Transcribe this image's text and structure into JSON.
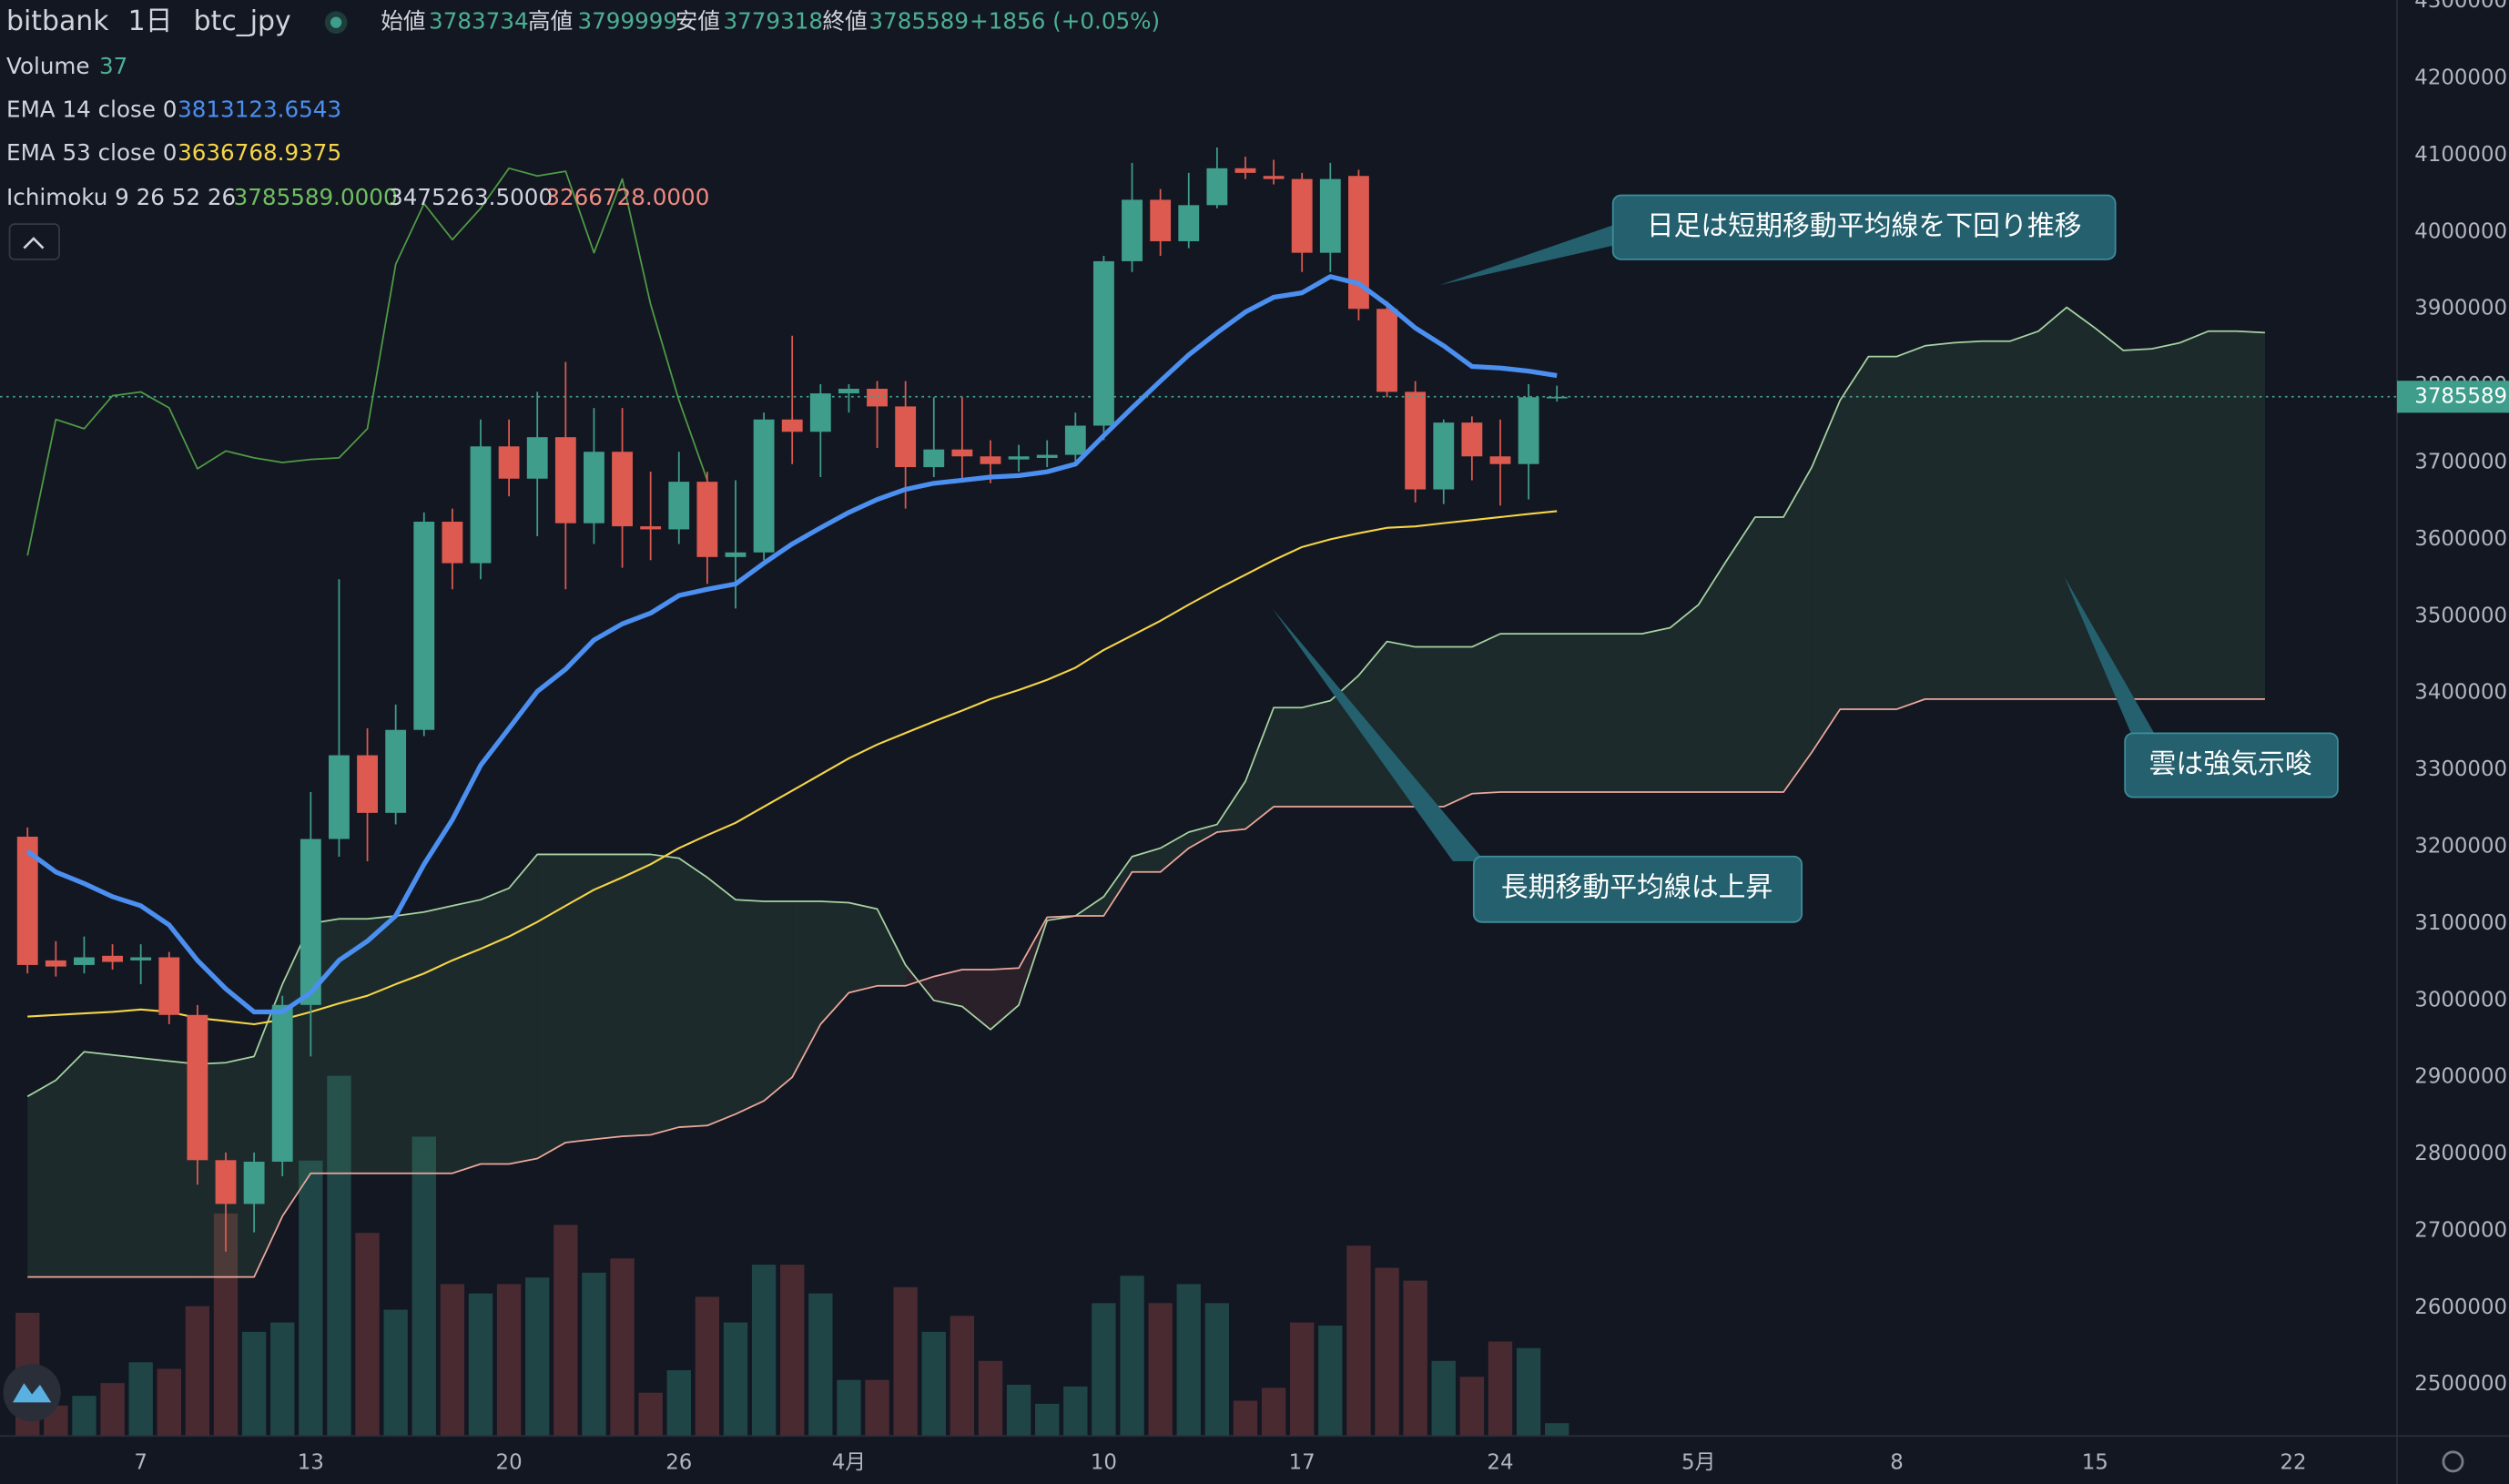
{
  "chart_data": {
    "type": "candlestick",
    "header": {
      "exchange": "bitbank",
      "interval": "1日",
      "symbol": "btc_jpy",
      "open_label": "始値",
      "high_label": "高値",
      "low_label": "安値",
      "close_label": "終値",
      "change": "+1856 (+0.05%)"
    },
    "categories": [
      null,
      null,
      null,
      null,
      "7",
      null,
      null,
      null,
      null,
      null,
      "13",
      null,
      null,
      null,
      null,
      null,
      null,
      "20",
      null,
      null,
      null,
      null,
      null,
      "26",
      null,
      null,
      null,
      null,
      null,
      "4月",
      null,
      null,
      null,
      null,
      null,
      null,
      null,
      null,
      "10",
      null,
      null,
      null,
      null,
      null,
      null,
      "17",
      null,
      null,
      null,
      null,
      null,
      null,
      "24",
      null,
      null,
      null,
      null,
      null,
      null,
      "5月",
      null,
      null,
      null,
      null,
      null,
      null,
      "8",
      null,
      null,
      null,
      null,
      null,
      null,
      "15",
      null,
      null,
      null,
      null,
      null,
      null,
      "22"
    ],
    "ylim": [
      2433000,
      4302000
    ],
    "yticks": [
      2500000,
      2600000,
      2700000,
      2800000,
      2900000,
      3000000,
      3100000,
      3200000,
      3300000,
      3400000,
      3500000,
      3600000,
      3700000,
      3800000,
      3900000,
      4000000,
      4100000,
      4200000,
      4300000
    ],
    "grid": false,
    "volume_ylim": [
      0,
      4150
    ],
    "ohlc": {
      "up_color": "#3f9d8c",
      "down_color": "#dc5a50",
      "open": [
        3213000,
        3052000,
        3046000,
        3058000,
        3052000,
        3056000,
        2981000,
        2792000,
        2735000,
        2790000,
        2994000,
        3210000,
        3319000,
        3244000,
        3352000,
        3623000,
        3569000,
        3721000,
        3679000,
        3733000,
        3621000,
        3714000,
        3617000,
        3613000,
        3675000,
        3577000,
        3583000,
        3756000,
        3740000,
        3790000,
        3796000,
        3773000,
        3694000,
        3717000,
        3708000,
        3704000,
        3706000,
        3710000,
        3748000,
        3962000,
        4042000,
        3988000,
        4035000,
        4083000,
        4073000,
        4069000,
        3973000,
        4073000,
        3900000,
        3792000,
        3665000,
        3752000,
        3708000,
        3698000,
        3783734,
        null,
        null,
        null,
        null,
        null,
        null,
        null,
        null,
        null,
        null,
        null,
        null,
        null,
        null,
        null,
        null,
        null,
        null,
        null,
        null,
        null,
        null,
        null,
        null,
        null,
        null
      ],
      "high": [
        3225000,
        3077000,
        3083000,
        3073000,
        3073000,
        3063000,
        2994000,
        2802000,
        2802000,
        3006000,
        3271000,
        3548000,
        3354000,
        3385000,
        3635000,
        3640000,
        3756000,
        3756000,
        3792000,
        3831000,
        3771000,
        3771000,
        3688000,
        3714000,
        3688000,
        3677000,
        3765000,
        3865000,
        3802000,
        3802000,
        3806000,
        3806000,
        3785000,
        3785000,
        3729000,
        3723000,
        3729000,
        3765000,
        3969000,
        4090000,
        4056000,
        4077000,
        4110000,
        4098000,
        4094000,
        4077000,
        4090000,
        4081000,
        3910000,
        3806000,
        3756000,
        3760000,
        3756000,
        3802000,
        3799999,
        null,
        null,
        null,
        null,
        null,
        null,
        null,
        null,
        null,
        null,
        null,
        null,
        null,
        null,
        null,
        null,
        null,
        null,
        null,
        null,
        null,
        null,
        null,
        null,
        null,
        null
      ],
      "low": [
        3035000,
        3031000,
        3035000,
        3040000,
        3021000,
        2969000,
        2760000,
        2673000,
        2698000,
        2771000,
        2927000,
        3187000,
        3181000,
        3229000,
        3344000,
        3535000,
        3548000,
        3656000,
        3604000,
        3535000,
        3594000,
        3563000,
        3573000,
        3594000,
        3542000,
        3510000,
        3573000,
        3698000,
        3681000,
        3765000,
        3719000,
        3640000,
        3681000,
        3677000,
        3673000,
        3688000,
        3694000,
        3698000,
        3729000,
        3948000,
        3969000,
        3979000,
        4031000,
        4069000,
        4062000,
        3948000,
        3948000,
        3885000,
        3785000,
        3648000,
        3646000,
        3677000,
        3644000,
        3652000,
        3779318,
        null,
        null,
        null,
        null,
        null,
        null,
        null,
        null,
        null,
        null,
        null,
        null,
        null,
        null,
        null,
        null,
        null,
        null,
        null,
        null,
        null,
        null,
        null,
        null,
        null,
        null
      ],
      "close": [
        3046000,
        3044000,
        3056000,
        3050000,
        3056000,
        2981000,
        2792000,
        2735000,
        2790000,
        2994000,
        3210000,
        3319000,
        3244000,
        3352000,
        3623000,
        3569000,
        3721000,
        3679000,
        3733000,
        3621000,
        3714000,
        3617000,
        3613000,
        3675000,
        3577000,
        3583000,
        3756000,
        3740000,
        3790000,
        3796000,
        3773000,
        3694000,
        3717000,
        3708000,
        3698000,
        3708000,
        3710000,
        3748000,
        3962000,
        4042000,
        3988000,
        4035000,
        4083000,
        4077000,
        4069000,
        3973000,
        4069000,
        3900000,
        3792000,
        3665000,
        3752000,
        3708000,
        3698000,
        3785000,
        3785589,
        null,
        null,
        null,
        null,
        null,
        null,
        null,
        null,
        null,
        null,
        null,
        null,
        null,
        null,
        null,
        null,
        null,
        null,
        null,
        null,
        null,
        null,
        null,
        null,
        null,
        null
      ]
    },
    "volume": {
      "name": "Volume",
      "up_color": "#1f4547",
      "down_color": "#4a2a31",
      "values": [
        356,
        88,
        116,
        153,
        213,
        194,
        375,
        643,
        301,
        328,
        796,
        1041,
        587,
        365,
        865,
        439,
        412,
        439,
        458,
        610,
        472,
        513,
        125,
        190,
        402,
        328,
        495,
        495,
        412,
        162,
        162,
        430,
        301,
        347,
        217,
        148,
        93,
        143,
        384,
        463,
        384,
        439,
        384,
        102,
        139,
        328,
        319,
        550,
        486,
        449,
        217,
        171,
        273,
        254,
        37,
        null,
        null,
        null,
        null,
        null,
        null,
        null,
        null,
        null,
        null,
        null,
        null,
        null,
        null,
        null,
        null,
        null,
        null,
        null,
        null,
        null,
        null,
        null,
        null,
        null,
        null
      ]
    },
    "ema14": {
      "name": "EMA 14 close 0",
      "color": "#4b8ff0",
      "values": [
        3194000,
        3167000,
        3152000,
        3135000,
        3123000,
        3098000,
        3052000,
        3015000,
        2985000,
        2985000,
        3010000,
        3052000,
        3077000,
        3110000,
        3177000,
        3235000,
        3306000,
        3354000,
        3402000,
        3431000,
        3469000,
        3490000,
        3504000,
        3527000,
        3535000,
        3542000,
        3569000,
        3594000,
        3615000,
        3635000,
        3652000,
        3665000,
        3673000,
        3677000,
        3681000,
        3683000,
        3688000,
        3698000,
        3735000,
        3771000,
        3806000,
        3840000,
        3869000,
        3896000,
        3915000,
        3921000,
        3942000,
        3933000,
        3906000,
        3875000,
        3852000,
        3825000,
        3823000,
        3819000,
        3813123.6543,
        null,
        null,
        null,
        null,
        null,
        null,
        null,
        null,
        null,
        null,
        null,
        null,
        null,
        null,
        null,
        null,
        null,
        null,
        null,
        null,
        null,
        null,
        null,
        null,
        null,
        null
      ]
    },
    "ema53": {
      "name": "EMA 53 close 0",
      "color": "#f5d547",
      "values": [
        2979000,
        2981000,
        2983000,
        2985000,
        2988000,
        2985000,
        2977000,
        2973000,
        2969000,
        2975000,
        2985000,
        2996000,
        3006000,
        3021000,
        3035000,
        3052000,
        3067000,
        3083000,
        3102000,
        3123000,
        3144000,
        3160000,
        3177000,
        3198000,
        3215000,
        3231000,
        3252000,
        3273000,
        3294000,
        3315000,
        3333000,
        3348000,
        3363000,
        3377000,
        3392000,
        3404000,
        3417000,
        3433000,
        3456000,
        3475000,
        3494000,
        3515000,
        3535000,
        3554000,
        3573000,
        3590000,
        3600000,
        3608000,
        3615000,
        3617000,
        3621000,
        3625000,
        3629000,
        3633000,
        3636768.9375,
        null,
        null,
        null,
        null,
        null,
        null,
        null,
        null,
        null,
        null,
        null,
        null,
        null,
        null,
        null,
        null,
        null,
        null,
        null,
        null,
        null,
        null,
        null,
        null,
        null,
        null
      ]
    },
    "ichimoku": {
      "name": "Ichimoku 9 26 52 26",
      "legend_values": [
        "3785589.0000",
        "3475263.5000",
        "3266728.0000"
      ],
      "legend_colors": [
        "#6fbf5f",
        "#d1d4dc",
        "#f08a80"
      ],
      "cloud_up_color": "rgba(90,170,110,0.13)",
      "cloud_down_color": "rgba(200,90,90,0.13)",
      "lagging": {
        "color": "#4f9b45",
        "values": [
          3579000,
          3756000,
          3744000,
          3787000,
          3792000,
          3771000,
          3692000,
          3715000,
          3706000,
          3700000,
          3704000,
          3706000,
          3744000,
          3958000,
          4037000,
          3990000,
          4031000,
          4083000,
          4073000,
          4079000,
          3973000,
          4069000,
          3906000,
          3781000,
          3677000,
          null,
          null,
          null,
          null,
          null,
          null,
          null,
          null,
          null,
          null,
          null,
          null,
          null,
          null,
          null,
          null,
          null,
          null,
          null,
          null,
          null,
          null,
          null,
          null,
          null,
          null,
          null,
          null,
          null,
          null,
          null,
          null,
          null,
          null,
          null,
          null,
          null,
          null,
          null,
          null,
          null,
          null,
          null,
          null,
          null,
          null,
          null,
          null,
          null,
          null,
          null,
          null,
          null,
          null,
          null,
          null
        ]
      },
      "lead1": {
        "color": "#a6d3a2",
        "values": [
          2875000,
          2896000,
          2933000,
          2929000,
          2925000,
          2921000,
          2917000,
          2919000,
          2927000,
          3021000,
          3100000,
          3106000,
          3106000,
          3110000,
          3115000,
          3123000,
          3131000,
          3146000,
          3190000,
          3190000,
          3190000,
          3190000,
          3190000,
          3185000,
          3160000,
          3131000,
          3129000,
          3129000,
          3129000,
          3127000,
          3119000,
          3046000,
          3000000,
          2992000,
          2962000,
          2994000,
          3104000,
          3110000,
          3135000,
          3187000,
          3198000,
          3219000,
          3229000,
          3285000,
          3381000,
          3381000,
          3390000,
          3423000,
          3467000,
          3460000,
          3460000,
          3460000,
          3477000,
          3477000,
          3477000,
          3477000,
          3477000,
          3477000,
          3485000,
          3515000,
          3573000,
          3629000,
          3629000,
          3694000,
          3781000,
          3838000,
          3838000,
          3852000,
          3856000,
          3858000,
          3858000,
          3871000,
          3902000,
          3875000,
          3846000,
          3848000,
          3856000,
          3871000,
          3871000,
          3869000,
          null
        ]
      },
      "lead2": {
        "color": "#eda89c",
        "values": [
          2640000,
          2640000,
          2640000,
          2640000,
          2640000,
          2640000,
          2640000,
          2640000,
          2640000,
          2719000,
          2775000,
          2775000,
          2775000,
          2775000,
          2775000,
          2775000,
          2787000,
          2787000,
          2794000,
          2815000,
          2819000,
          2823000,
          2825000,
          2835000,
          2837000,
          2852000,
          2869000,
          2900000,
          2969000,
          3010000,
          3019000,
          3019000,
          3031000,
          3040000,
          3040000,
          3042000,
          3108000,
          3110000,
          3110000,
          3167000,
          3167000,
          3198000,
          3219000,
          3223000,
          3252000,
          3252000,
          3252000,
          3252000,
          3252000,
          3252000,
          3252000,
          3269000,
          3271000,
          3271000,
          3271000,
          3271000,
          3271000,
          3271000,
          3271000,
          3271000,
          3271000,
          3271000,
          3271000,
          3323000,
          3379000,
          3379000,
          3379000,
          3392000,
          3392000,
          3392000,
          3392000,
          3392000,
          3392000,
          3392000,
          3392000,
          3392000,
          3392000,
          3392000,
          3392000,
          3392000,
          null
        ]
      }
    },
    "annotations": [
      {
        "text": "日足は短期移動平均線を下回り推移"
      },
      {
        "text": "長期移動平均線は上昇"
      },
      {
        "text": "雲は強気示唆"
      }
    ]
  }
}
